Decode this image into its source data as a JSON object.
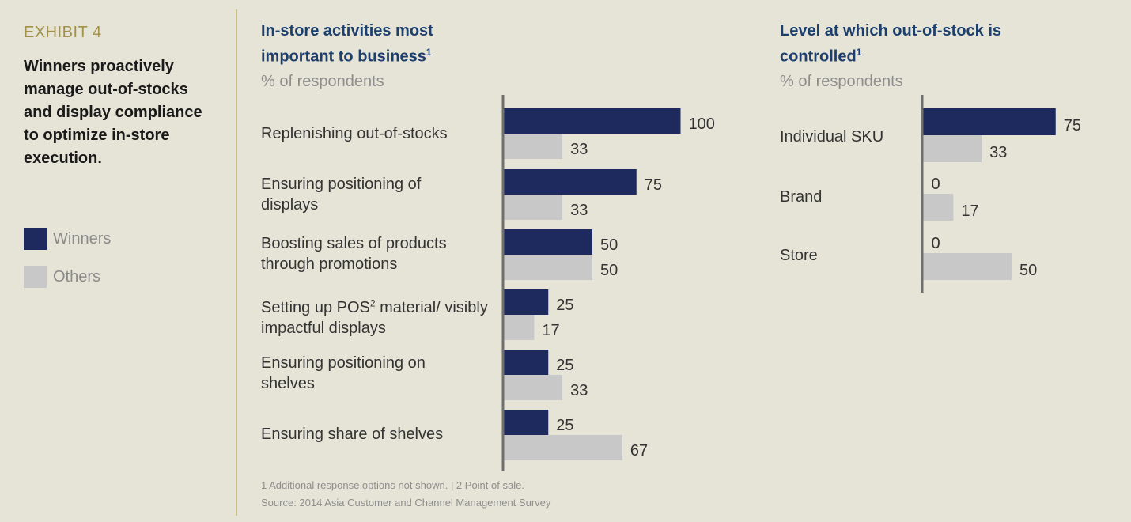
{
  "exhibit_label": "EXHIBIT 4",
  "headline": "Winners proactively manage out-of-stocks and display compliance to optimize in-store execution.",
  "legend": [
    {
      "label": "Winners",
      "color": "#1e2a5e"
    },
    {
      "label": "Others",
      "color": "#c8c8c8"
    }
  ],
  "footnotes": {
    "line1": "1 Additional response options not shown.   |   2 Point of sale.",
    "line2": "Source: 2014 Asia Customer and Channel Management Survey"
  },
  "chart_data": [
    {
      "type": "bar",
      "orientation": "horizontal",
      "title": "In-store activities most important to business",
      "title_footnote": "1",
      "subtitle": "% of respondents",
      "categories": [
        "Replenishing out-of-stocks",
        "Ensuring positioning of displays",
        "Boosting sales of products through promotions",
        "Setting up POS material/ visibly impactful displays",
        "Ensuring positioning on shelves",
        "Ensuring share of shelves"
      ],
      "series": [
        {
          "name": "Winners",
          "values": [
            100,
            75,
            50,
            25,
            25,
            25
          ]
        },
        {
          "name": "Others",
          "values": [
            33,
            33,
            50,
            17,
            33,
            67
          ]
        }
      ]
    },
    {
      "type": "bar",
      "orientation": "horizontal",
      "title": "Level at which out-of-stock is controlled",
      "title_footnote": "1",
      "subtitle": "% of respondents",
      "categories": [
        "Individual SKU",
        "Brand",
        "Store"
      ],
      "series": [
        {
          "name": "Winners",
          "values": [
            75,
            0,
            0
          ]
        },
        {
          "name": "Others",
          "values": [
            33,
            17,
            50
          ]
        }
      ]
    }
  ]
}
